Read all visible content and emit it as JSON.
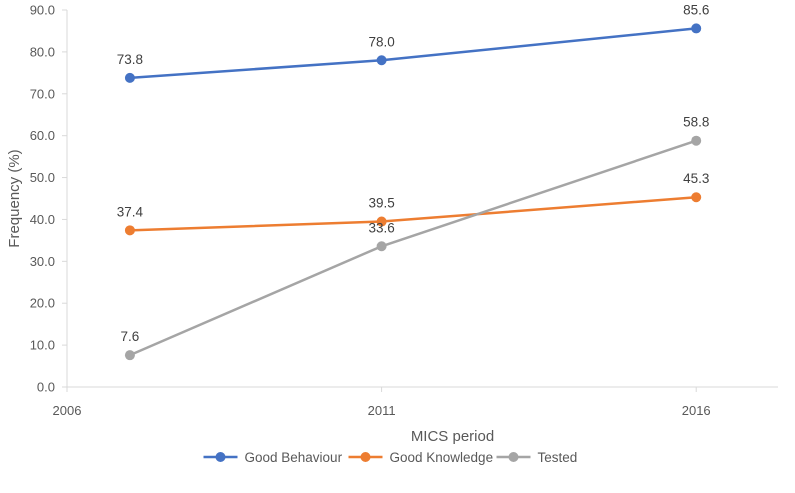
{
  "chart_data": {
    "type": "line",
    "title": "",
    "xlabel": "MICS period",
    "ylabel": "Frequency (%)",
    "x_ticks": [
      "2006",
      "2011",
      "2016"
    ],
    "y_ticks": [
      "0.0",
      "10.0",
      "20.0",
      "30.0",
      "40.0",
      "50.0",
      "60.0",
      "70.0",
      "80.0",
      "90.0"
    ],
    "xlim": [
      2006,
      2017.3
    ],
    "ylim": [
      0,
      90
    ],
    "grid": false,
    "legend_position": "bottom",
    "x": [
      2007,
      2011,
      2016
    ],
    "series": [
      {
        "name": "Good Behaviour",
        "color": "#4472C4",
        "values": [
          73.8,
          78.0,
          85.6
        ],
        "labels": [
          "73.8",
          "78.0",
          "85.6"
        ]
      },
      {
        "name": "Good Knowledge",
        "color": "#ED7D31",
        "values": [
          37.4,
          39.5,
          45.3
        ],
        "labels": [
          "37.4",
          "39.5",
          "45.3"
        ]
      },
      {
        "name": "Tested",
        "color": "#A5A5A5",
        "values": [
          7.6,
          33.6,
          58.8
        ],
        "labels": [
          "7.6",
          "33.6",
          "58.8"
        ]
      }
    ]
  }
}
